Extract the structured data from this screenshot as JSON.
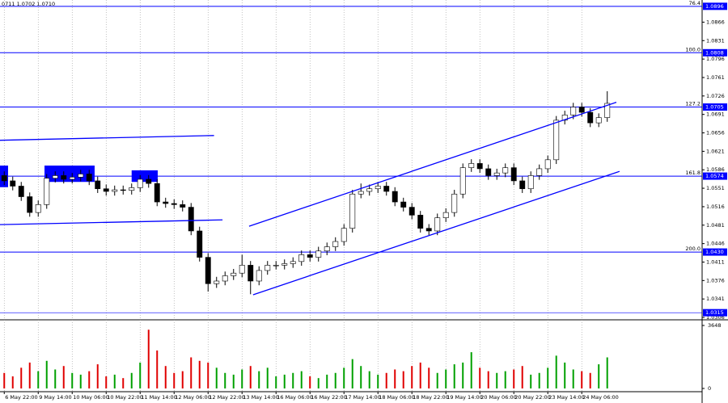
{
  "header_text": "0711 1.0702 1.0710",
  "chart_data": [
    {
      "type": "candlestick",
      "open": [
        1.0575,
        1.0565,
        1.0555,
        1.0535,
        1.0505,
        1.052,
        1.057,
        1.0575,
        1.0568,
        1.0572,
        1.0578,
        1.0565,
        1.055,
        1.0545,
        1.0548,
        1.0547,
        1.0552,
        1.0568,
        1.056,
        1.0525,
        1.0522,
        1.052,
        1.0515,
        1.047,
        1.042,
        1.037,
        1.0375,
        1.0385,
        1.039,
        1.0405,
        1.0375,
        1.0395,
        1.0405,
        1.0405,
        1.0408,
        1.0412,
        1.0425,
        1.042,
        1.0432,
        1.044,
        1.045,
        1.0475,
        1.054,
        1.0545,
        1.055,
        1.0555,
        1.0545,
        1.0525,
        1.0515,
        1.05,
        1.0475,
        1.047,
        1.0495,
        1.0505,
        1.054,
        1.059,
        1.0598,
        1.0588,
        1.0575,
        1.058,
        1.059,
        1.0565,
        1.055,
        1.0575,
        1.0588,
        1.0605,
        1.068,
        1.069,
        1.0705,
        1.0695,
        1.0675,
        1.0685
      ],
      "high": [
        1.0583,
        1.0573,
        1.0563,
        1.0543,
        1.0528,
        1.0578,
        1.0583,
        1.0583,
        1.058,
        1.0586,
        1.0586,
        1.0573,
        1.0558,
        1.0556,
        1.0556,
        1.056,
        1.0576,
        1.0576,
        1.0568,
        1.0533,
        1.053,
        1.0528,
        1.0523,
        1.0478,
        1.0428,
        1.0383,
        1.0393,
        1.0398,
        1.0425,
        1.0413,
        1.0403,
        1.0413,
        1.0413,
        1.0416,
        1.042,
        1.0433,
        1.0433,
        1.044,
        1.0448,
        1.0458,
        1.0483,
        1.0548,
        1.056,
        1.0558,
        1.0563,
        1.0563,
        1.0553,
        1.0533,
        1.0523,
        1.0508,
        1.0483,
        1.0503,
        1.0513,
        1.0548,
        1.0598,
        1.0606,
        1.0606,
        1.0596,
        1.0588,
        1.0598,
        1.0598,
        1.0573,
        1.0583,
        1.0596,
        1.0613,
        1.0688,
        1.0698,
        1.0713,
        1.0713,
        1.0703,
        1.0693,
        1.0735
      ],
      "low": [
        1.0557,
        1.0547,
        1.0527,
        1.0497,
        1.0497,
        1.0512,
        1.0562,
        1.056,
        1.056,
        1.0564,
        1.0557,
        1.0542,
        1.0537,
        1.0537,
        1.0539,
        1.0539,
        1.0544,
        1.0552,
        1.0517,
        1.0514,
        1.0512,
        1.0507,
        1.0462,
        1.0412,
        1.0355,
        1.0362,
        1.0367,
        1.0377,
        1.0382,
        1.035,
        1.0367,
        1.0387,
        1.0397,
        1.0397,
        1.04,
        1.0404,
        1.0412,
        1.0412,
        1.0424,
        1.0432,
        1.0442,
        1.0467,
        1.0532,
        1.0537,
        1.0542,
        1.0537,
        1.0517,
        1.0507,
        1.0492,
        1.0467,
        1.0462,
        1.0462,
        1.0487,
        1.0497,
        1.0532,
        1.0582,
        1.058,
        1.0567,
        1.0567,
        1.0572,
        1.0557,
        1.0542,
        1.0542,
        1.0567,
        1.058,
        1.0597,
        1.0672,
        1.0682,
        1.0687,
        1.0667,
        1.0667,
        1.0677
      ],
      "close": [
        1.0565,
        1.0555,
        1.0535,
        1.0505,
        1.052,
        1.057,
        1.0575,
        1.0568,
        1.0572,
        1.0578,
        1.0565,
        1.055,
        1.0545,
        1.0548,
        1.0547,
        1.0552,
        1.0568,
        1.056,
        1.0525,
        1.0522,
        1.052,
        1.0515,
        1.047,
        1.042,
        1.037,
        1.0375,
        1.0385,
        1.039,
        1.0405,
        1.0375,
        1.0395,
        1.0405,
        1.0405,
        1.0408,
        1.0412,
        1.0425,
        1.042,
        1.0432,
        1.044,
        1.045,
        1.0475,
        1.054,
        1.0545,
        1.055,
        1.0555,
        1.0545,
        1.0525,
        1.0515,
        1.05,
        1.0475,
        1.047,
        1.0495,
        1.0505,
        1.054,
        1.059,
        1.0598,
        1.0588,
        1.0575,
        1.058,
        1.059,
        1.0565,
        1.055,
        1.0575,
        1.0588,
        1.0605,
        1.068,
        1.069,
        1.0705,
        1.0695,
        1.0675,
        1.0685,
        1.0712
      ],
      "color_up": "#ffffff",
      "color_down": "#000000",
      "xlim": [
        -0.5,
        82.17
      ],
      "ylim": [
        1.0303,
        1.0908
      ],
      "yticks": [
        1.0866,
        1.0831,
        1.0796,
        1.0761,
        1.0726,
        1.0691,
        1.0656,
        1.0621,
        1.0586,
        1.0551,
        1.0516,
        1.0481,
        1.0446,
        1.0411,
        1.0376,
        1.0341,
        1.0306
      ],
      "xticks": [
        {
          "value": 0,
          "label": "6 May 22:00"
        },
        {
          "value": 4,
          "label": "9 May 14:00"
        },
        {
          "value": 8,
          "label": "10 May 06:00"
        },
        {
          "value": 12,
          "label": "10 May 22:00"
        },
        {
          "value": 16,
          "label": "11 May 14:00"
        },
        {
          "value": 20,
          "label": "12 May 06:00"
        },
        {
          "value": 24,
          "label": "12 May 22:00"
        },
        {
          "value": 28,
          "label": "13 May 14:00"
        },
        {
          "value": 32,
          "label": "16 May 06:00"
        },
        {
          "value": 36,
          "label": "16 May 22:00"
        },
        {
          "value": 40,
          "label": "17 May 14:00"
        },
        {
          "value": 44,
          "label": "18 May 06:00"
        },
        {
          "value": 48,
          "label": "18 May 22:00"
        },
        {
          "value": 52,
          "label": "19 May 14:00"
        },
        {
          "value": 56,
          "label": "20 May 06:00"
        },
        {
          "value": 60,
          "label": "20 May 22:00"
        },
        {
          "value": 64,
          "label": "23 May 14:00"
        },
        {
          "value": 68,
          "label": "24 May 06:00"
        }
      ],
      "grid": true,
      "level_color": "#0000ff",
      "levels": [
        {
          "value": 1.0896,
          "fib": "76.4"
        },
        {
          "value": 1.0808,
          "fib": "100.0"
        },
        {
          "value": 1.0705,
          "fib": "127.2"
        },
        {
          "value": 1.0574,
          "fib": "161.8"
        },
        {
          "value": {
            "value": 1.043,
            "label": "1.0430"
          },
          "fib": "200.0"
        },
        {
          "value": 1.0315
        }
      ],
      "trendlines": [
        {
          "x": [
            28.83,
            72.07
          ],
          "y": [
            1.0479,
            1.0714
          ]
        },
        {
          "x": [
            29.3,
            72.45
          ],
          "y": [
            1.0349,
            1.0583
          ]
        },
        {
          "x": [
            -0.5,
            24.7
          ],
          "y": [
            1.0642,
            1.0651
          ]
        },
        {
          "x": [
            -0.5,
            25.7
          ],
          "y": [
            1.0482,
            1.0491
          ]
        }
      ],
      "zones": [
        {
          "x": [
            -0.5,
            0.45
          ],
          "y": [
            1.0594,
            1.0553
          ]
        },
        {
          "x": [
            4.74,
            10.64
          ],
          "y": [
            1.0594,
            1.0563
          ]
        },
        {
          "x": [
            15.0,
            18.07
          ],
          "y": [
            1.0585,
            1.0563
          ]
        }
      ]
    },
    {
      "type": "volume",
      "values": [
        900,
        700,
        1200,
        1500,
        1000,
        1600,
        1100,
        1300,
        900,
        800,
        1000,
        1400,
        700,
        800,
        600,
        900,
        1500,
        3400,
        2200,
        1300,
        900,
        1000,
        1800,
        1600,
        1500,
        1200,
        900,
        800,
        1100,
        1300,
        1000,
        1200,
        700,
        800,
        900,
        1000,
        700,
        600,
        800,
        900,
        1200,
        1700,
        1300,
        1000,
        800,
        900,
        1100,
        1000,
        1300,
        1500,
        1200,
        900,
        1100,
        1400,
        1500,
        2100,
        1200,
        1000,
        900,
        1000,
        1100,
        1300,
        800,
        900,
        1200,
        1900,
        1500,
        1100,
        1000,
        900,
        1400,
        1800
      ],
      "xlim": [
        -0.5,
        82.17
      ],
      "ylim": [
        0,
        3648
      ],
      "yticks": [
        3648,
        0
      ],
      "color_up": "#00a000",
      "color_down": "#e00000"
    }
  ]
}
